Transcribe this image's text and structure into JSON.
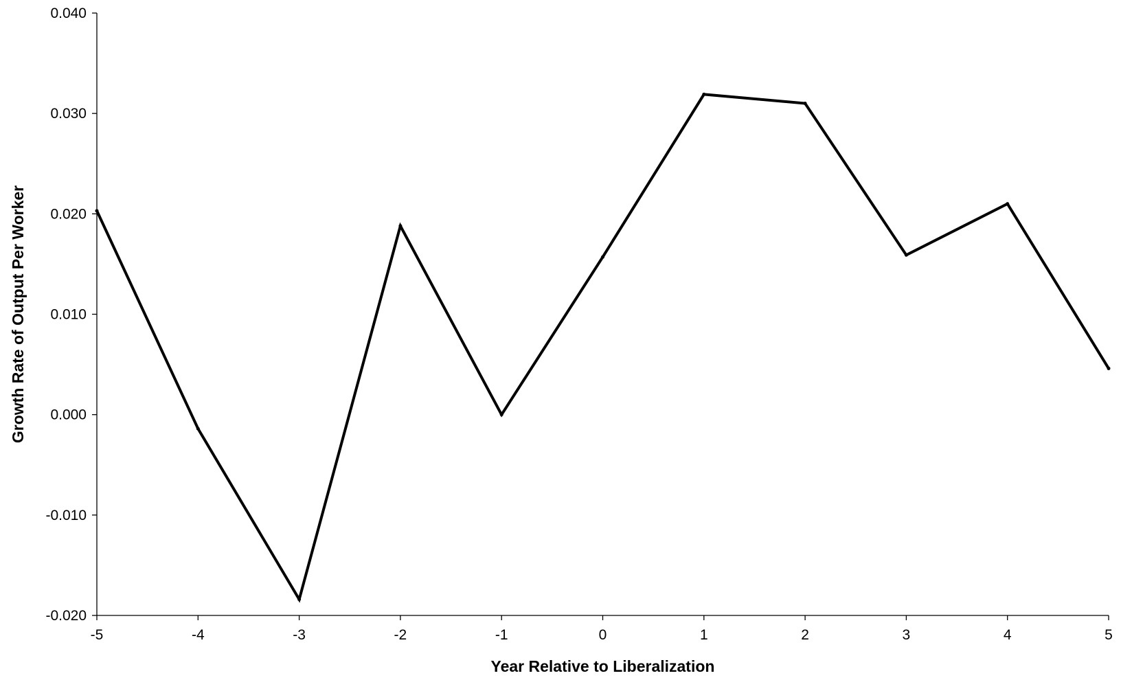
{
  "chart_data": {
    "type": "line",
    "title": "",
    "xlabel": "Year Relative to Liberalization",
    "ylabel": "Growth Rate of Output Per Worker",
    "x": [
      -5,
      -4,
      -3,
      -2,
      -1,
      0,
      1,
      2,
      3,
      4,
      5
    ],
    "series": [
      {
        "values": [
          0.0203,
          -0.0014,
          -0.0184,
          0.0188,
          0.0,
          0.0157,
          0.0319,
          0.031,
          0.0159,
          0.021,
          0.0046
        ]
      }
    ],
    "xlim": [
      -5,
      5
    ],
    "ylim": [
      -0.02,
      0.04
    ],
    "x_ticks": [
      -5,
      -4,
      -3,
      -2,
      -1,
      0,
      1,
      2,
      3,
      4,
      5
    ],
    "y_ticks": [
      -0.02,
      -0.01,
      0,
      0.01,
      0.02,
      0.03,
      0.04
    ],
    "x_tick_labels": [
      "-5",
      "-4",
      "-3",
      "-2",
      "-1",
      "0",
      "1",
      "2",
      "3",
      "4",
      "5"
    ],
    "y_tick_labels": [
      "-0.020",
      "-0.010",
      "0.000",
      "0.010",
      "0.020",
      "0.030",
      "0.040"
    ],
    "grid": false,
    "legend": "none",
    "line_color": "#000000"
  }
}
